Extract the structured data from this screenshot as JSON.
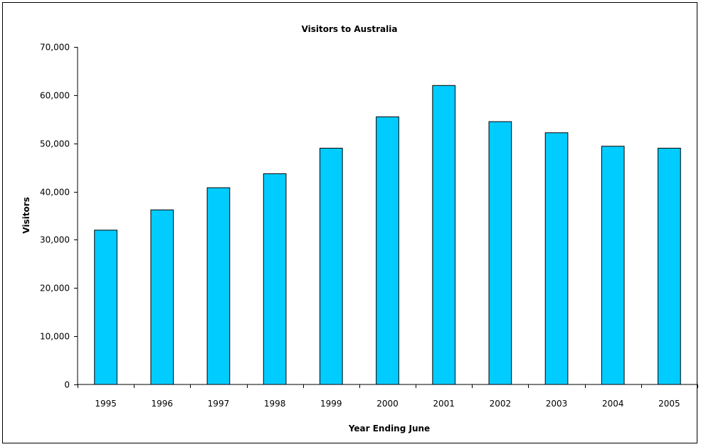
{
  "chart_data": {
    "type": "bar",
    "title": "Visitors to Australia",
    "xlabel": "Year Ending June",
    "ylabel": "Visitors",
    "categories": [
      "1995",
      "1996",
      "1997",
      "1998",
      "1999",
      "2000",
      "2001",
      "2002",
      "2003",
      "2004",
      "2005"
    ],
    "values": [
      32000,
      36200,
      40800,
      43700,
      49000,
      55500,
      62000,
      54500,
      52200,
      49400,
      49000
    ],
    "ylim": [
      0,
      70000
    ],
    "yticks": [
      0,
      10000,
      20000,
      30000,
      40000,
      50000,
      60000,
      70000
    ],
    "ytick_labels": [
      "0",
      "10,000",
      "20,000",
      "30,000",
      "40,000",
      "50,000",
      "60,000",
      "70,000"
    ],
    "grid": false,
    "legend": "none",
    "bar_color": "#00CCFF",
    "bar_edge_color": "#000000"
  }
}
